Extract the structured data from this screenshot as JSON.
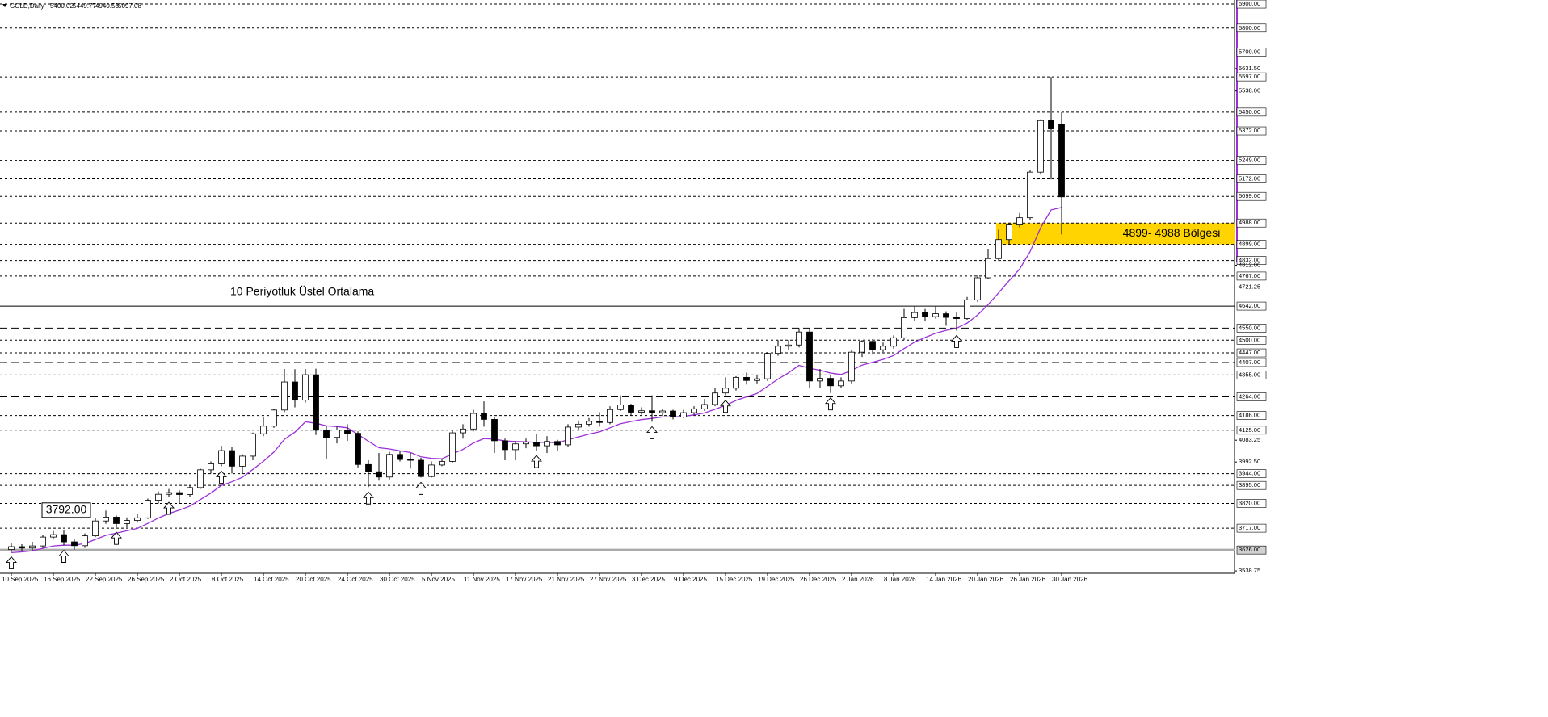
{
  "chart_data": {
    "type": "candlestick",
    "title": "GOLD,Daily",
    "up_color": "#ffffff",
    "down_color": "#000000",
    "categories": [
      "10 Sep 2025",
      null,
      null,
      null,
      "16 Sep 2025",
      null,
      null,
      null,
      "22 Sep 2025",
      null,
      null,
      null,
      "26 Sep 2025",
      null,
      null,
      null,
      "2 Oct 2025",
      null,
      null,
      null,
      "8 Oct 2025",
      null,
      null,
      null,
      "14 Oct 2025",
      null,
      null,
      null,
      "20 Oct 2025",
      null,
      null,
      null,
      "24 Oct 2025",
      null,
      null,
      null,
      "30 Oct 2025",
      null,
      null,
      null,
      "5 Nov 2025",
      null,
      null,
      null,
      "11 Nov 2025",
      null,
      null,
      null,
      "17 Nov 2025",
      null,
      null,
      null,
      "21 Nov 2025",
      null,
      null,
      null,
      "27 Nov 2025",
      null,
      null,
      null,
      "3 Dec 2025",
      null,
      null,
      null,
      "9 Dec 2025",
      null,
      null,
      null,
      "15 Dec 2025",
      null,
      null,
      null,
      "19 Dec 2025",
      null,
      null,
      null,
      "26 Dec 2025",
      null,
      null,
      null,
      "2 Jan 2026",
      null,
      null,
      null,
      "8 Jan 2026",
      null,
      null,
      null,
      "14 Jan 2026",
      null,
      null,
      null,
      "20 Jan 2026",
      null,
      null,
      null,
      "26 Jan 2026",
      null,
      null,
      null,
      "30 Jan 2026"
    ],
    "open": [
      3628,
      3640,
      3634,
      3643,
      3680,
      3690,
      3660,
      3644,
      3685,
      3747,
      3763,
      3736,
      3749,
      3760,
      3833,
      3858,
      3865,
      3857,
      3886,
      3960,
      3985,
      4040,
      3975,
      4017,
      4110,
      4142,
      4209,
      4326,
      4250,
      4356,
      4125,
      4095,
      4126,
      4112,
      3982,
      3952,
      3930,
      4024,
      4003,
      4000,
      3932,
      3980,
      3995,
      4114,
      4130,
      4195,
      4170,
      4081,
      4044,
      4068,
      4075,
      4060,
      4078,
      4064,
      4138,
      4150,
      4162,
      4157,
      4211,
      4230,
      4200,
      4206,
      4198,
      4205,
      4180,
      4198,
      4214,
      4232,
      4280,
      4300,
      4345,
      4332,
      4339,
      4445,
      4475,
      4480,
      4534,
      4330,
      4341,
      4310,
      4330,
      4450,
      4495,
      4460,
      4475,
      4510,
      4594,
      4615,
      4598,
      4610,
      4595,
      4590,
      4668,
      4760,
      4840,
      4919,
      4980,
      5010,
      5200,
      5415,
      5400.02
    ],
    "high": [
      3655,
      3650,
      3660,
      3690,
      3705,
      3708,
      3670,
      3695,
      3760,
      3790,
      3770,
      3762,
      3775,
      3840,
      3870,
      3880,
      3875,
      3895,
      3965,
      3995,
      4060,
      4055,
      4025,
      4115,
      4180,
      4215,
      4380,
      4379,
      4380,
      4381,
      4145,
      4140,
      4150,
      4120,
      4000,
      4030,
      4035,
      4040,
      4030,
      4010,
      3995,
      4005,
      4125,
      4150,
      4210,
      4245,
      4180,
      4090,
      4080,
      4090,
      4110,
      4100,
      4085,
      4150,
      4165,
      4175,
      4200,
      4225,
      4270,
      4235,
      4220,
      4270,
      4215,
      4210,
      4210,
      4225,
      4255,
      4300,
      4345,
      4350,
      4365,
      4355,
      4450,
      4500,
      4500,
      4550,
      4550,
      4380,
      4355,
      4345,
      4460,
      4500,
      4505,
      4490,
      4520,
      4630,
      4640,
      4630,
      4640,
      4620,
      4615,
      4680,
      4770,
      4880,
      4960,
      4988,
      5030,
      5210,
      5420,
      5597,
      5449.77
    ],
    "low": [
      3618,
      3620,
      3625,
      3635,
      3670,
      3645,
      3628,
      3635,
      3680,
      3735,
      3720,
      3720,
      3740,
      3755,
      3820,
      3845,
      3820,
      3845,
      3880,
      3945,
      3975,
      3945,
      3945,
      4000,
      4100,
      4135,
      4200,
      4220,
      4240,
      4105,
      4005,
      4070,
      4080,
      3970,
      3888,
      3915,
      3920,
      3995,
      3965,
      3928,
      3928,
      3975,
      3990,
      4090,
      4120,
      4140,
      4030,
      4000,
      4000,
      4050,
      4040,
      4030,
      4040,
      4055,
      4125,
      4140,
      4140,
      4150,
      4205,
      4185,
      4190,
      4160,
      4185,
      4170,
      4175,
      4190,
      4205,
      4225,
      4270,
      4290,
      4315,
      4320,
      4330,
      4435,
      4460,
      4470,
      4300,
      4300,
      4280,
      4300,
      4320,
      4430,
      4440,
      4450,
      4465,
      4500,
      4580,
      4580,
      4590,
      4560,
      4540,
      4585,
      4660,
      4755,
      4830,
      4900,
      4970,
      5000,
      5190,
      5170,
      4940.53
    ],
    "close": [
      3640,
      3634,
      3643,
      3680,
      3690,
      3660,
      3644,
      3685,
      3747,
      3763,
      3736,
      3749,
      3760,
      3833,
      3858,
      3865,
      3857,
      3886,
      3960,
      3985,
      4040,
      3975,
      4017,
      4110,
      4142,
      4209,
      4326,
      4250,
      4356,
      4125,
      4095,
      4126,
      4112,
      3982,
      3952,
      3930,
      4024,
      4003,
      4000,
      3932,
      3980,
      3995,
      4114,
      4130,
      4195,
      4170,
      4081,
      4044,
      4068,
      4075,
      4060,
      4078,
      4064,
      4138,
      4150,
      4162,
      4157,
      4211,
      4230,
      4200,
      4206,
      4198,
      4205,
      4180,
      4198,
      4214,
      4232,
      4280,
      4300,
      4345,
      4332,
      4339,
      4445,
      4475,
      4480,
      4534,
      4330,
      4341,
      4310,
      4330,
      4450,
      4495,
      4460,
      4475,
      4510,
      4594,
      4615,
      4598,
      4610,
      4595,
      4590,
      4668,
      4760,
      4840,
      4919,
      4980,
      5010,
      5200,
      5415,
      5380,
      5097.08
    ],
    "series": [
      {
        "name": "10 Periyotluk Üstel Ortalama",
        "color": "#9b30d9",
        "values": [
          3615,
          3618,
          3623,
          3633,
          3643,
          3646,
          3646,
          3653,
          3670,
          3687,
          3696,
          3706,
          3716,
          3737,
          3759,
          3778,
          3792,
          3809,
          3836,
          3863,
          3895,
          3910,
          3929,
          3962,
          3995,
          4034,
          4087,
          4117,
          4160,
          4154,
          4143,
          4140,
          4135,
          4107,
          4079,
          4052,
          4047,
          4039,
          4032,
          4014,
          4008,
          4006,
          4026,
          4045,
          4072,
          4090,
          4088,
          4080,
          4078,
          4077,
          4074,
          4075,
          4073,
          4085,
          4097,
          4109,
          4118,
          4135,
          4152,
          4161,
          4169,
          4174,
          4180,
          4180,
          4183,
          4189,
          4197,
          4212,
          4228,
          4249,
          4264,
          4278,
          4308,
          4338,
          4364,
          4395,
          4383,
          4375,
          4363,
          4357,
          4374,
          4396,
          4408,
          4420,
          4436,
          4465,
          4492,
          4511,
          4529,
          4541,
          4550,
          4571,
          4605,
          4648,
          4697,
          4748,
          4796,
          4869,
          4968,
          5043,
          5053
        ]
      }
    ],
    "ylim": [
      3529,
      5917
    ],
    "yticks": [
      {
        "value": 5631.5,
        "label": "5631.50"
      },
      {
        "value": 5538,
        "label": "5538.00"
      },
      {
        "value": 4812,
        "label": "4812.00"
      },
      {
        "value": 4721.25,
        "label": "4721.25"
      },
      {
        "value": 4083.25,
        "label": "4083.25"
      },
      {
        "value": 3992.5,
        "label": "3992.50"
      },
      {
        "value": 3538.75,
        "label": "3538.75"
      }
    ],
    "levels": [
      {
        "value": 5900,
        "label": "5900.00",
        "style": "dash"
      },
      {
        "value": 5800,
        "label": "5800.00",
        "style": "dash"
      },
      {
        "value": 5700,
        "label": "5700.00",
        "style": "dash"
      },
      {
        "value": 5597,
        "label": "5597.00",
        "style": "dash"
      },
      {
        "value": 5450,
        "label": "5450.00",
        "style": "dash"
      },
      {
        "value": 5372,
        "label": "5372.00",
        "style": "dash"
      },
      {
        "value": 5249,
        "label": "5249.00",
        "style": "dash"
      },
      {
        "value": 5172,
        "label": "5172.00",
        "style": "dash"
      },
      {
        "value": 5099,
        "label": "5099.00",
        "style": "dash"
      },
      {
        "value": 4988,
        "label": "4988.00",
        "style": "dash"
      },
      {
        "value": 4899,
        "label": "4899.00",
        "style": "dash"
      },
      {
        "value": 4832,
        "label": "4832.00",
        "style": "dash"
      },
      {
        "value": 4767,
        "label": "4767.00",
        "style": "dash"
      },
      {
        "value": 4642,
        "label": "4642.00",
        "style": "solid"
      },
      {
        "value": 4550,
        "label": "4550.00",
        "style": "longdash"
      },
      {
        "value": 4500,
        "label": "4500.00",
        "style": "dash"
      },
      {
        "value": 4447,
        "label": "4447.00",
        "style": "dash"
      },
      {
        "value": 4407,
        "label": "4407.00",
        "style": "longdash"
      },
      {
        "value": 4355,
        "label": "4355.00",
        "style": "dash"
      },
      {
        "value": 4264,
        "label": "4264.00",
        "style": "longdash"
      },
      {
        "value": 4186,
        "label": "4186.00",
        "style": "dash"
      },
      {
        "value": 4125,
        "label": "4125.00",
        "style": "dash"
      },
      {
        "value": 3944,
        "label": "3944.00",
        "style": "dash"
      },
      {
        "value": 3895,
        "label": "3895.00",
        "style": "dash"
      },
      {
        "value": 3820,
        "label": "3820.00",
        "style": "dash"
      },
      {
        "value": 3717,
        "label": "3717.00",
        "style": "dash"
      },
      {
        "value": 3626,
        "label": "3626.00",
        "style": "gray"
      }
    ],
    "zone": {
      "from": 4899,
      "to": 4988,
      "label": "4899- 4988 Bölgesi",
      "color": "#ffd400"
    },
    "price_note": {
      "value": 3792,
      "label": "3792.00"
    }
  }
}
